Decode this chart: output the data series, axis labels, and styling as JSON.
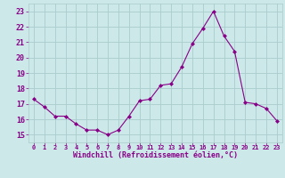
{
  "x": [
    0,
    1,
    2,
    3,
    4,
    5,
    6,
    7,
    8,
    9,
    10,
    11,
    12,
    13,
    14,
    15,
    16,
    17,
    18,
    19,
    20,
    21,
    22,
    23
  ],
  "y": [
    17.3,
    16.8,
    16.2,
    16.2,
    15.7,
    15.3,
    15.3,
    15.0,
    15.3,
    16.2,
    17.2,
    17.3,
    18.2,
    18.3,
    19.4,
    20.9,
    21.9,
    23.0,
    21.4,
    20.4,
    17.1,
    17.0,
    16.7,
    15.9
  ],
  "xlabel": "Windchill (Refroidissement éolien,°C)",
  "ylim": [
    14.5,
    23.5
  ],
  "xlim": [
    -0.5,
    23.5
  ],
  "yticks": [
    15,
    16,
    17,
    18,
    19,
    20,
    21,
    22,
    23
  ],
  "xticks": [
    0,
    1,
    2,
    3,
    4,
    5,
    6,
    7,
    8,
    9,
    10,
    11,
    12,
    13,
    14,
    15,
    16,
    17,
    18,
    19,
    20,
    21,
    22,
    23
  ],
  "line_color": "#880088",
  "marker_color": "#880088",
  "bg_color": "#cce8e8",
  "grid_color": "#aacccc",
  "xlabel_color": "#880088",
  "tick_color": "#880088",
  "font_family": "monospace"
}
